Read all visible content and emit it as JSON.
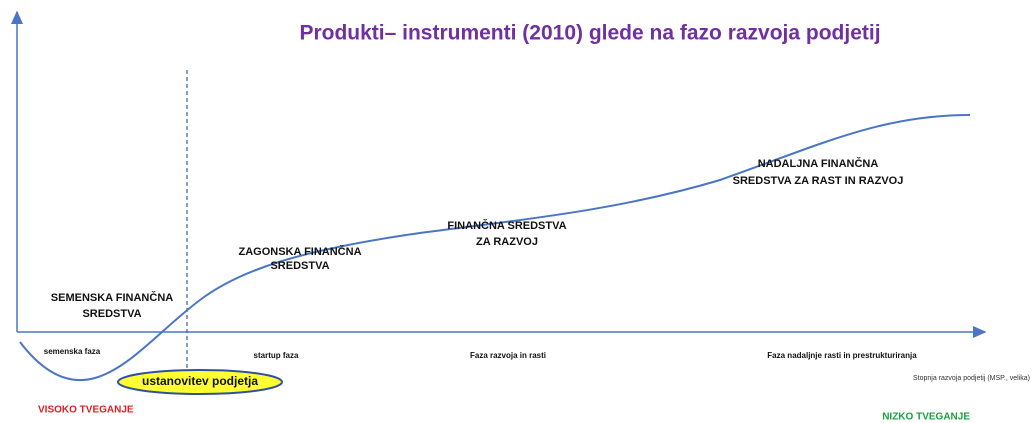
{
  "title": "Produkti– instrumenti (2010) glede na fazo razvoja podjetij",
  "stages": [
    {
      "lines": [
        "SEMENSKA FINANČNA",
        "SREDSTVA"
      ]
    },
    {
      "lines": [
        "ZAGONSKA FINANČNA",
        "SREDSTVA"
      ]
    },
    {
      "lines": [
        "FINANČNA  SREDSTVA",
        "ZA RAZVOJ"
      ]
    },
    {
      "lines": [
        "NADALJNA FINANČNA",
        "SREDSTVA ZA RAST IN RAZVOJ"
      ]
    }
  ],
  "phases": [
    "semenska faza",
    "startup faza",
    "Faza razvoja  in rasti",
    "Faza nadaljnje  rasti in prestrukturiranja"
  ],
  "founding": "ustanovitev podjetja",
  "x_axis_label": "Stopnja razvoja podjetij (MSP., velika)",
  "risk_high": "VISOKO TVEGANJE",
  "risk_low": "NIZKO TVEGANJE"
}
